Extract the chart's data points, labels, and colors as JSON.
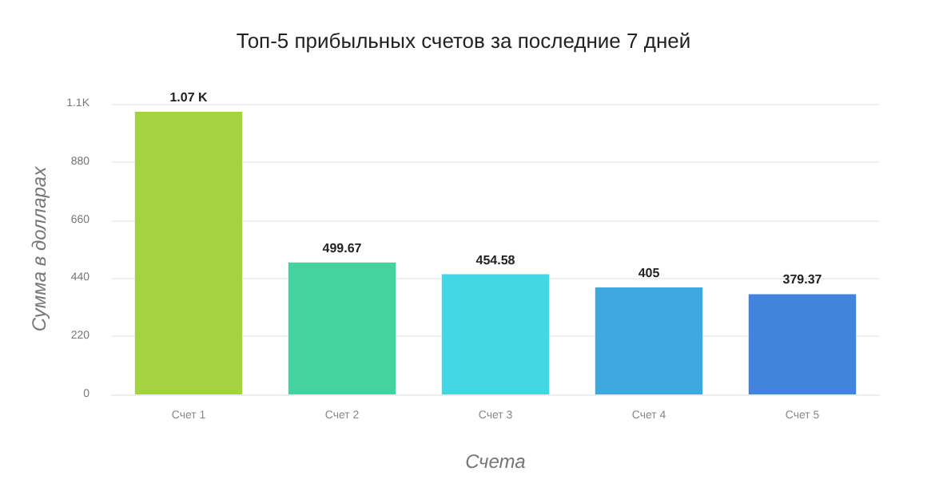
{
  "chart_data": {
    "type": "bar",
    "title": "Топ-5 прибыльных счетов за последние 7 дней",
    "xlabel": "Счета",
    "ylabel": "Сумма в долларах",
    "categories": [
      "Счет 1",
      "Счет 2",
      "Счет 3",
      "Счет 4",
      "Счет 5"
    ],
    "values": [
      1070,
      499.67,
      454.58,
      405,
      379.37
    ],
    "value_labels": [
      "1.07 K",
      "499.67",
      "454.58",
      "405",
      "379.37"
    ],
    "colors": [
      "#a3d341",
      "#44d3a0",
      "#42d7e3",
      "#3fa8e0",
      "#4284dd"
    ],
    "ylim": [
      0,
      1100
    ],
    "yticks": [
      0,
      220,
      440,
      660,
      880,
      {
        "value": 1100,
        "label": "1.1K"
      }
    ],
    "grid": "y"
  }
}
